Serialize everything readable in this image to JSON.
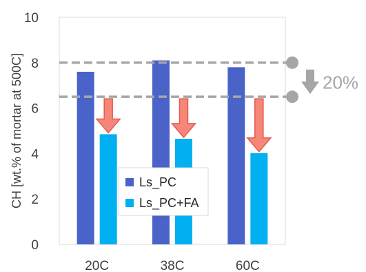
{
  "chart_data": {
    "type": "bar",
    "categories": [
      "20C",
      "38C",
      "60C"
    ],
    "series": [
      {
        "name": "Ls_PC",
        "color": "#4a63c8",
        "values": [
          7.6,
          8.1,
          7.8
        ]
      },
      {
        "name": "Ls_PC+FA",
        "color": "#00b0f0",
        "values": [
          4.85,
          4.65,
          4.02
        ]
      }
    ],
    "ylabel": "CH  [wt.% of mortar at 500C]",
    "ylim": [
      0,
      10
    ],
    "yticks": [
      0,
      2,
      4,
      6,
      8,
      10
    ],
    "grid": false,
    "legend": "center",
    "annotations": {
      "reference_lines": [
        8.0,
        6.5
      ],
      "reduction_label": "20%",
      "line_color": "#a6a6a6",
      "arrow_color": "#f4877a"
    }
  }
}
